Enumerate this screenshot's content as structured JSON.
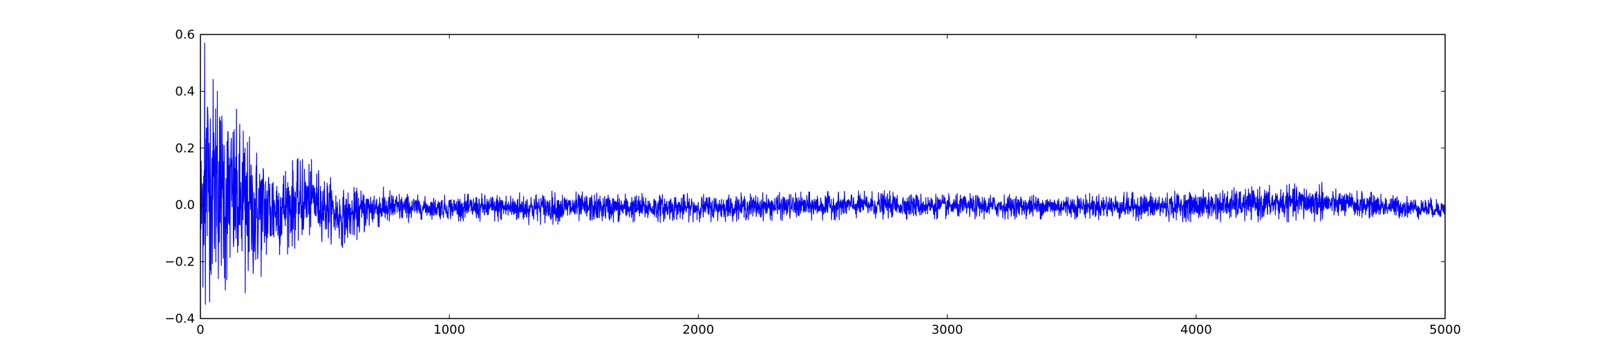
{
  "chart_data": {
    "type": "line",
    "title": "",
    "xlabel": "",
    "ylabel": "",
    "xlim": [
      0,
      5000
    ],
    "ylim": [
      -0.4,
      0.6
    ],
    "grid": false,
    "x_ticks": [
      0,
      1000,
      2000,
      3000,
      4000,
      5000
    ],
    "x_tick_labels": [
      "0",
      "1000",
      "2000",
      "3000",
      "4000",
      "5000"
    ],
    "y_ticks": [
      -0.4,
      -0.2,
      0.0,
      0.2,
      0.4,
      0.6
    ],
    "y_tick_labels": [
      "−0.4",
      "−0.2",
      "0.0",
      "0.2",
      "0.4",
      "0.6"
    ],
    "series": [
      {
        "color": "#0000ff",
        "x_start": 0,
        "x_step": 1,
        "n_points": 5000,
        "envelope": {
          "description_points_x": [
            0,
            20,
            100,
            200,
            300,
            450,
            570,
            700,
            900,
            1300,
            2000,
            2750,
            3000,
            3500,
            3950,
            4500,
            4520,
            5000
          ],
          "max_y": [
            0.23,
            0.57,
            0.4,
            0.26,
            0.17,
            0.16,
            0.06,
            0.07,
            0.03,
            0.05,
            0.04,
            0.05,
            0.04,
            0.04,
            0.05,
            0.08,
            0.06,
            0.02
          ],
          "min_y": [
            -0.33,
            -0.35,
            -0.31,
            -0.31,
            -0.2,
            -0.12,
            -0.15,
            -0.09,
            -0.05,
            -0.07,
            -0.06,
            -0.05,
            -0.05,
            -0.05,
            -0.06,
            -0.06,
            -0.05,
            -0.05
          ]
        },
        "sample_values": [
          {
            "x": 0,
            "y": 0.23
          },
          {
            "x": 17,
            "y": 0.57
          },
          {
            "x": 20,
            "y": -0.35
          },
          {
            "x": 68,
            "y": 0.4
          },
          {
            "x": 100,
            "y": -0.3
          },
          {
            "x": 172,
            "y": 0.26
          },
          {
            "x": 180,
            "y": -0.31
          },
          {
            "x": 410,
            "y": 0.16
          },
          {
            "x": 570,
            "y": -0.15
          },
          {
            "x": 4505,
            "y": 0.08
          }
        ]
      }
    ]
  }
}
